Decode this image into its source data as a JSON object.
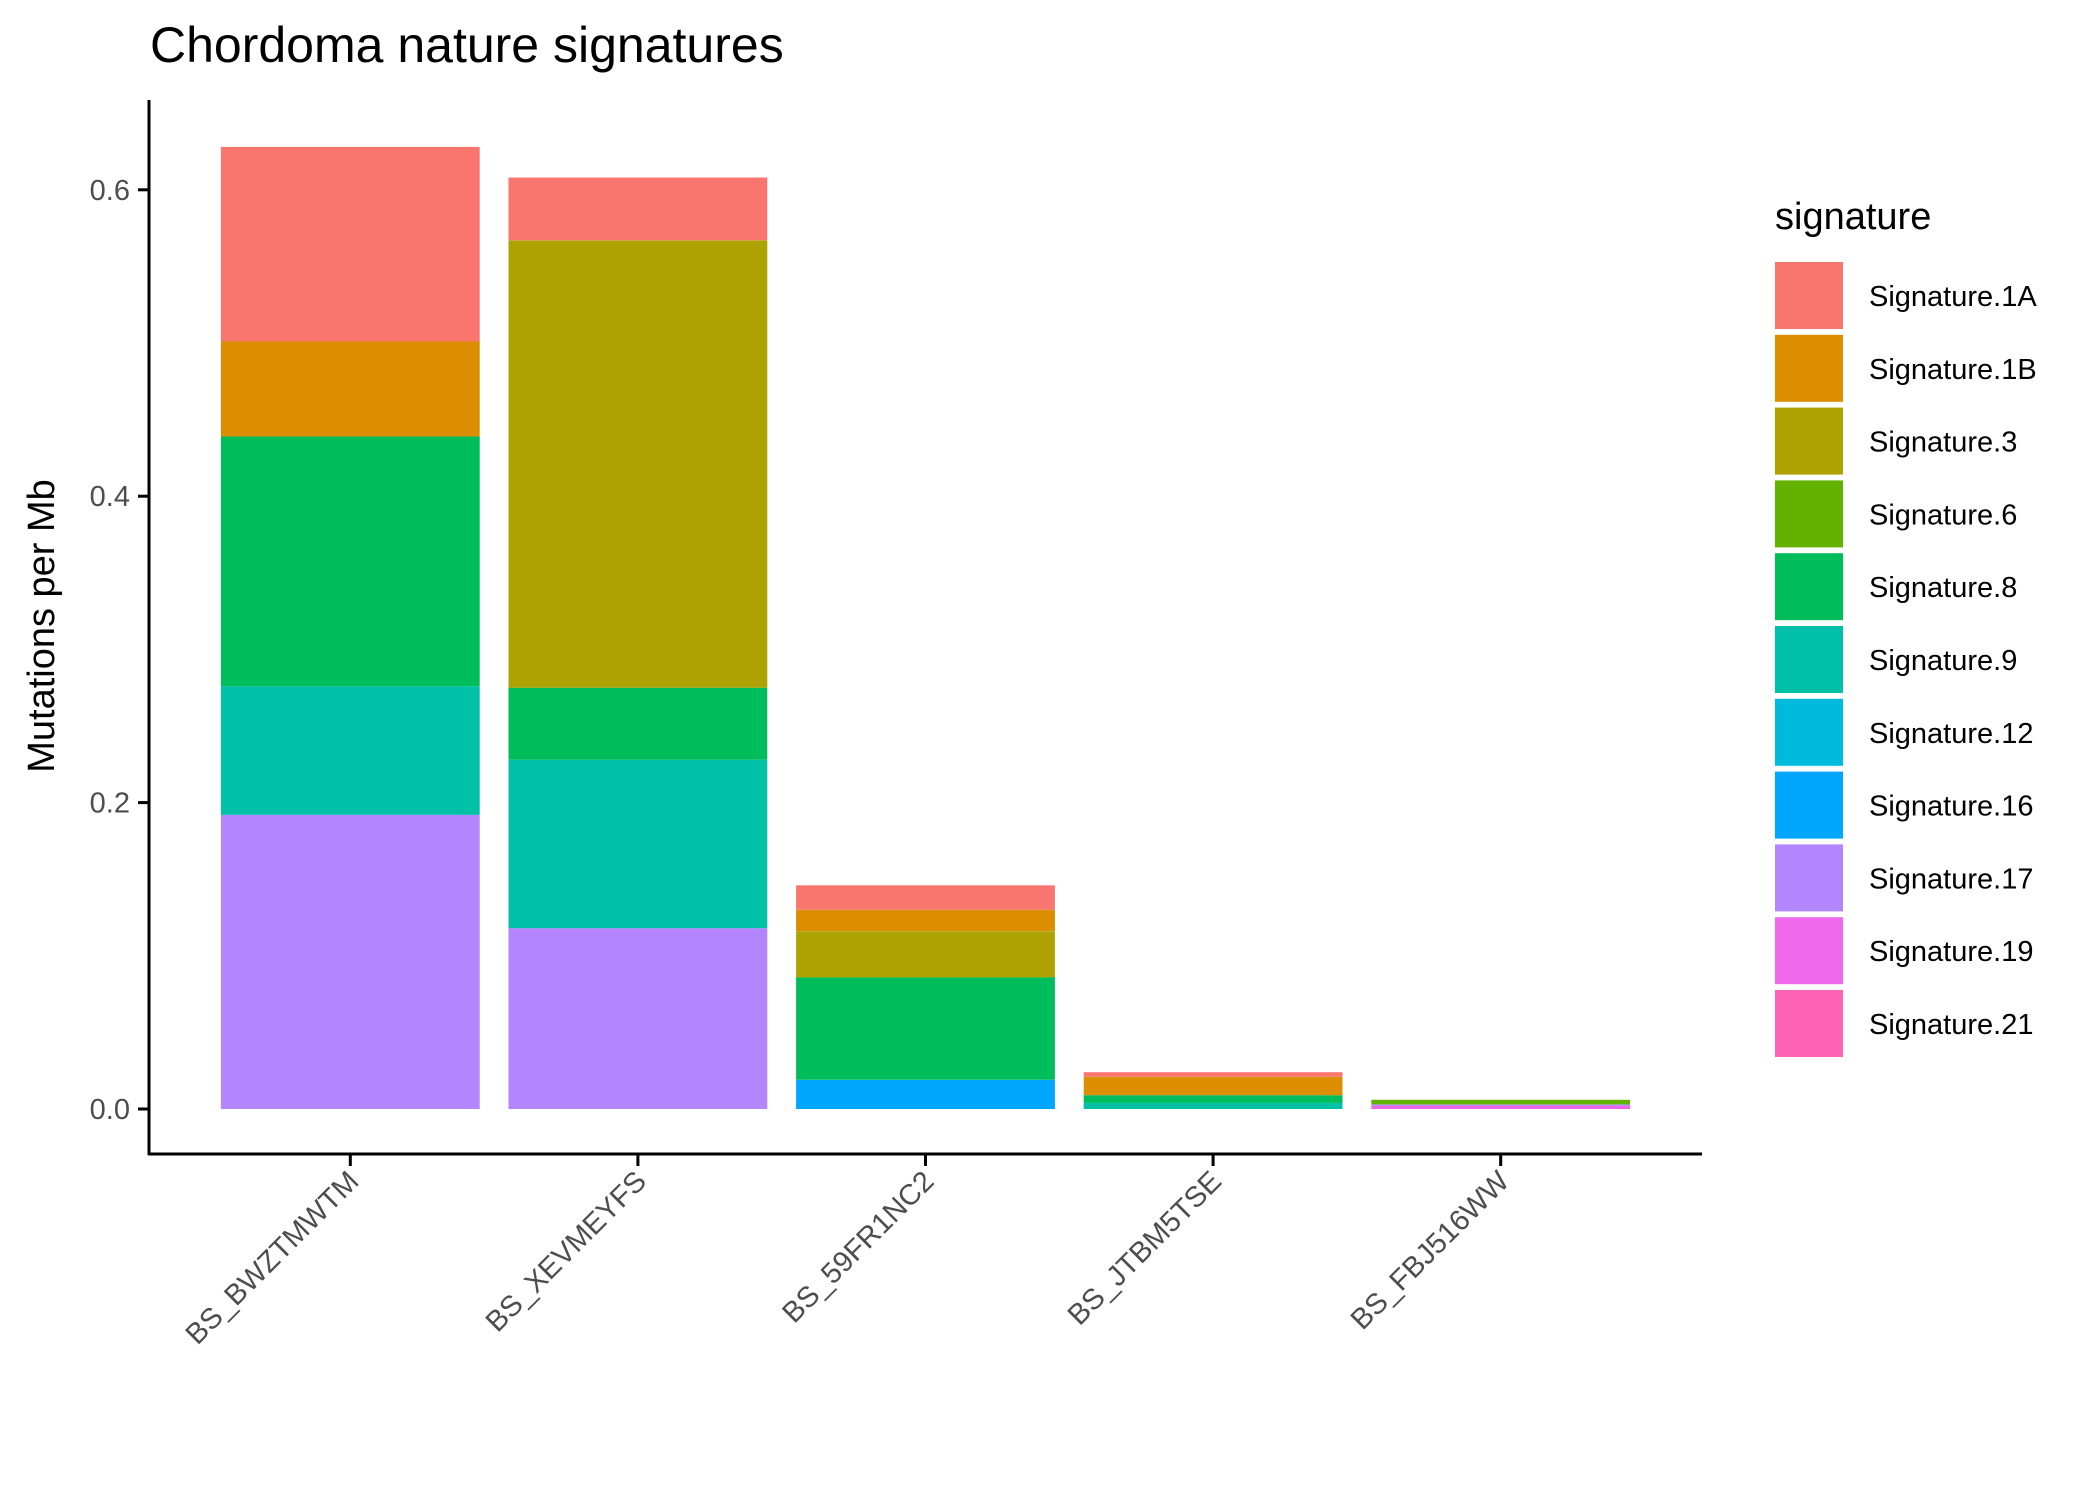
{
  "chart_data": {
    "type": "bar",
    "stacked": true,
    "title": "Chordoma nature signatures",
    "xlabel": "",
    "ylabel": "Mutations per Mb",
    "ylim": [
      -0.04,
      0.66
    ],
    "yticks": [
      "0.0",
      "0.2",
      "0.4",
      "0.6"
    ],
    "ytick_values": [
      0.0,
      0.2,
      0.4,
      0.6
    ],
    "categories": [
      "BS_BWZTMWTM",
      "BS_XEVMEYFS",
      "BS_59FR1NC2",
      "BS_JTBM5TSE",
      "BS_FBJ516WW"
    ],
    "grid": false,
    "legend": {
      "title": "signature",
      "position": "right"
    },
    "series": [
      {
        "name": "Signature.1A",
        "color": "#F8766D",
        "values": [
          0.127,
          0.041,
          0.016,
          0.003,
          0.0
        ]
      },
      {
        "name": "Signature.1B",
        "color": "#DB8E00",
        "values": [
          0.062,
          0.0,
          0.014,
          0.012,
          0.0
        ]
      },
      {
        "name": "Signature.3",
        "color": "#AEA200",
        "values": [
          0.0,
          0.292,
          0.03,
          0.0,
          0.0
        ]
      },
      {
        "name": "Signature.6",
        "color": "#64B200",
        "values": [
          0.0,
          0.0,
          0.0,
          0.0,
          0.003
        ]
      },
      {
        "name": "Signature.8",
        "color": "#00BD5C",
        "values": [
          0.163,
          0.047,
          0.067,
          0.005,
          0.0
        ]
      },
      {
        "name": "Signature.9",
        "color": "#00C1A7",
        "values": [
          0.084,
          0.11,
          0.0,
          0.004,
          0.0
        ]
      },
      {
        "name": "Signature.12",
        "color": "#00BADE",
        "values": [
          0.0,
          0.0,
          0.0,
          0.0,
          0.0
        ]
      },
      {
        "name": "Signature.16",
        "color": "#00A6FF",
        "values": [
          0.0,
          0.0,
          0.019,
          0.0,
          0.0
        ]
      },
      {
        "name": "Signature.17",
        "color": "#B385FF",
        "values": [
          0.192,
          0.118,
          0.0,
          0.0,
          0.001
        ]
      },
      {
        "name": "Signature.19",
        "color": "#EF67EB",
        "values": [
          0.0,
          0.0,
          0.0,
          0.0,
          0.002
        ]
      },
      {
        "name": "Signature.21",
        "color": "#FF63B6",
        "values": [
          0.0,
          0.0,
          0.0,
          0.0,
          0.0
        ]
      }
    ]
  }
}
